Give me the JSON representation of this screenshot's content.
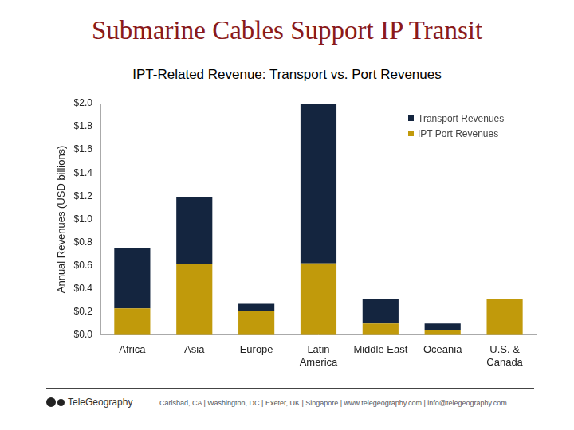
{
  "header": {
    "title": "Submarine Cables Support IP Transit"
  },
  "footer": {
    "logo": "TeleGeography",
    "text": "Carlsbad, CA | Washington, DC | Exeter, UK | Singapore | www.telegeography.com | info@telegeography.com"
  },
  "chart_data": {
    "type": "bar",
    "title": "IPT-Related Revenue: Transport vs. Port Revenues",
    "y_label": "Annual Revenues (USD billions)",
    "categories": [
      "Africa",
      "Asia",
      "Europe",
      "Latin America",
      "Middle East",
      "Oceania",
      "U.S. & Canada"
    ],
    "series": [
      {
        "name": "Transport Revenues",
        "color": "#14253f",
        "values": [
          0.52,
          0.58,
          0.06,
          1.38,
          0.21,
          0.06,
          0
        ]
      },
      {
        "name": "IPT Port Revenues",
        "color": "#c19a0b",
        "values": [
          0.23,
          0.61,
          0.21,
          0.62,
          0.1,
          0.04,
          0.31
        ]
      }
    ],
    "stacked": true,
    "ylim": [
      0,
      2.0
    ],
    "yticks": [
      {
        "value": 0,
        "label": "$0.0"
      },
      {
        "value": 0.2,
        "label": "$0.2"
      },
      {
        "value": 0.4,
        "label": "$0.4"
      },
      {
        "value": 0.6,
        "label": "$0.6"
      },
      {
        "value": 0.8,
        "label": "$0.8"
      },
      {
        "value": 1.0,
        "label": "$1.0"
      },
      {
        "value": 1.2,
        "label": "$1.2"
      },
      {
        "value": 1.4,
        "label": "$1.4"
      },
      {
        "value": 1.6,
        "label": "$1.6"
      },
      {
        "value": 1.8,
        "label": "$1.8"
      },
      {
        "value": 2.0,
        "label": "$2.0"
      }
    ],
    "grid": false,
    "legend": "upper right"
  }
}
